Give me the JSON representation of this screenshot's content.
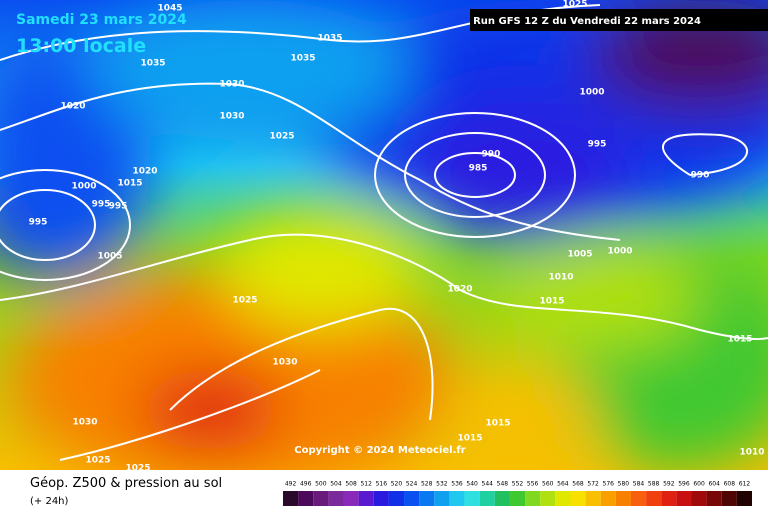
{
  "header": {
    "date": "Samedi 23 mars 2024",
    "time": "13:00 locale",
    "run": "Run GFS 12 Z du Vendredi 22 mars 2024"
  },
  "copyright": "Copyright © 2024 Meteociel.fr",
  "footer": {
    "title": "Géop. Z500 & pression au sol",
    "lead": "(+ 24h)"
  },
  "isobar_labels": [
    "1045",
    "1035",
    "1035",
    "1035",
    "1030",
    "1030",
    "1020",
    "1025",
    "1020",
    "1015",
    "1000",
    "995",
    "995",
    "995",
    "1005",
    "1025",
    "1030",
    "1030",
    "1025",
    "1025",
    "1015",
    "1015",
    "985",
    "990",
    "995",
    "1000",
    "990",
    "1025",
    "1005",
    "1000",
    "1010",
    "1020",
    "1015",
    "1015",
    "1010"
  ],
  "legend": {
    "labels": [
      492,
      496,
      500,
      504,
      508,
      512,
      516,
      520,
      524,
      528,
      532,
      536,
      540,
      544,
      548,
      552,
      556,
      560,
      564,
      568,
      572,
      576,
      580,
      584,
      588,
      592,
      596,
      600,
      604,
      608,
      612
    ],
    "colors": [
      "#2a0a2a",
      "#4b0a5a",
      "#6a1a7a",
      "#7a2a9a",
      "#8a2aba",
      "#5a1ad0",
      "#2a1ae0",
      "#1030e8",
      "#0a50f0",
      "#0a78f0",
      "#10a0f0",
      "#20c8f0",
      "#30e0e0",
      "#20d0a0",
      "#20c060",
      "#40c830",
      "#80d820",
      "#b0e010",
      "#e0e800",
      "#f8e000",
      "#f8c000",
      "#f8a000",
      "#f88000",
      "#f86010",
      "#f04010",
      "#e02010",
      "#c81010",
      "#a00a0a",
      "#780808",
      "#500505",
      "#200202"
    ]
  }
}
